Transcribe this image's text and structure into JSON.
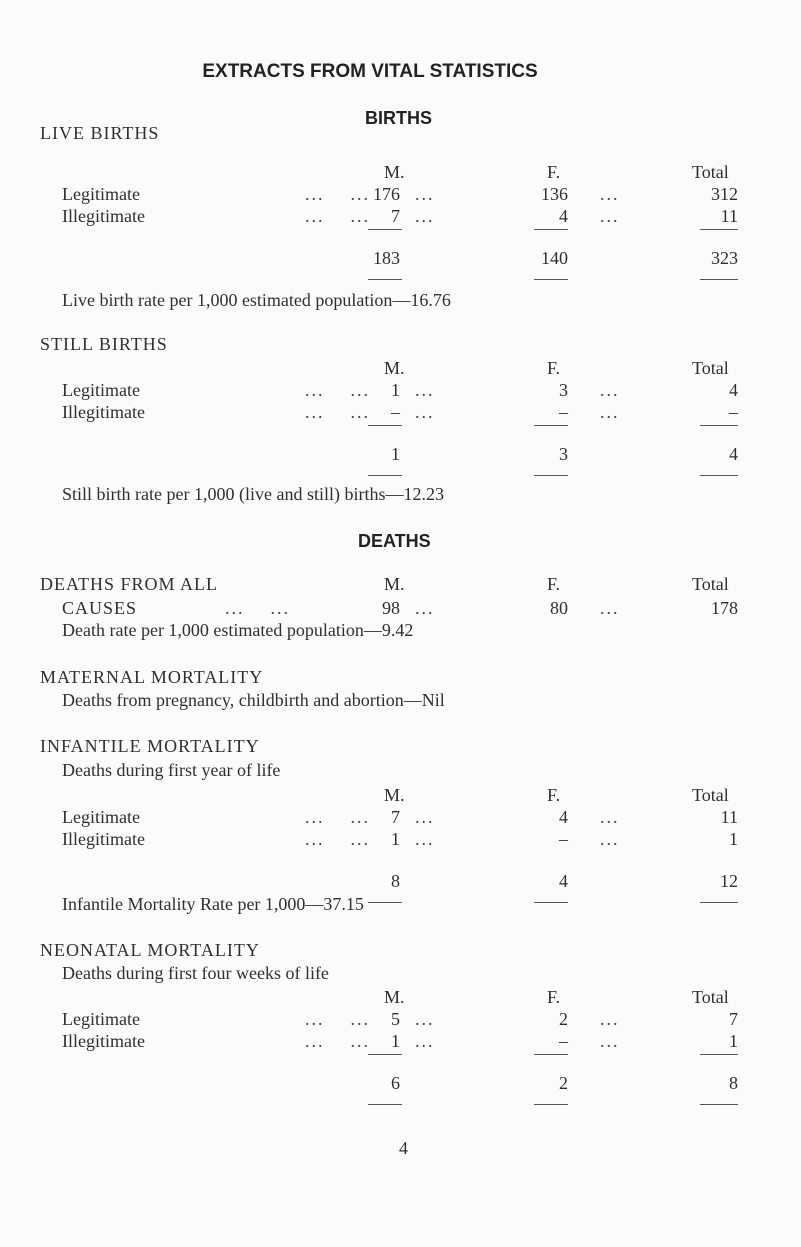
{
  "title": "EXTRACTS FROM VITAL STATISTICS",
  "births_heading": "BIRTHS",
  "deaths_heading": "DEATHS",
  "col_m": "M.",
  "col_f": "F.",
  "col_total": "Total",
  "live_births": {
    "heading": "LIVE BIRTHS",
    "rows": [
      {
        "label": "Legitimate",
        "m": "176",
        "f": "136",
        "total": "312"
      },
      {
        "label": "Illegitimate",
        "m": "7",
        "f": "4",
        "total": "11"
      }
    ],
    "totals": {
      "m": "183",
      "f": "140",
      "total": "323"
    },
    "rate": "Live birth rate per 1,000 estimated population—16.76"
  },
  "still_births": {
    "heading": "STILL BIRTHS",
    "rows": [
      {
        "label": "Legitimate",
        "m": "1",
        "f": "3",
        "total": "4"
      },
      {
        "label": "Illegitimate",
        "m": "–",
        "f": "–",
        "total": "–"
      }
    ],
    "totals": {
      "m": "1",
      "f": "3",
      "total": "4"
    },
    "rate": "Still birth rate per 1,000 (live and still) births—12.23"
  },
  "deaths_all": {
    "heading": "DEATHS FROM ALL",
    "label": "CAUSES",
    "m": "98",
    "f": "80",
    "total": "178",
    "rate": "Death rate per 1,000 estimated population—9.42"
  },
  "maternal": {
    "heading": "MATERNAL MORTALITY",
    "text": "Deaths from pregnancy, childbirth and abortion—Nil"
  },
  "infantile": {
    "heading": "INFANTILE MORTALITY",
    "sub": "Deaths during first year of life",
    "rows": [
      {
        "label": "Legitimate",
        "m": "7",
        "f": "4",
        "total": "11"
      },
      {
        "label": "Illegitimate",
        "m": "1",
        "f": "–",
        "total": "1"
      }
    ],
    "totals": {
      "m": "8",
      "f": "4",
      "total": "12"
    },
    "rate": "Infantile Mortality Rate per 1,000—37.15"
  },
  "neonatal": {
    "heading": "NEONATAL MORTALITY",
    "sub": "Deaths during first four weeks of life",
    "rows": [
      {
        "label": "Legitimate",
        "m": "5",
        "f": "2",
        "total": "7"
      },
      {
        "label": "Illegitimate",
        "m": "1",
        "f": "–",
        "total": "1"
      }
    ],
    "totals": {
      "m": "6",
      "f": "2",
      "total": "8"
    }
  },
  "page_number": "4"
}
